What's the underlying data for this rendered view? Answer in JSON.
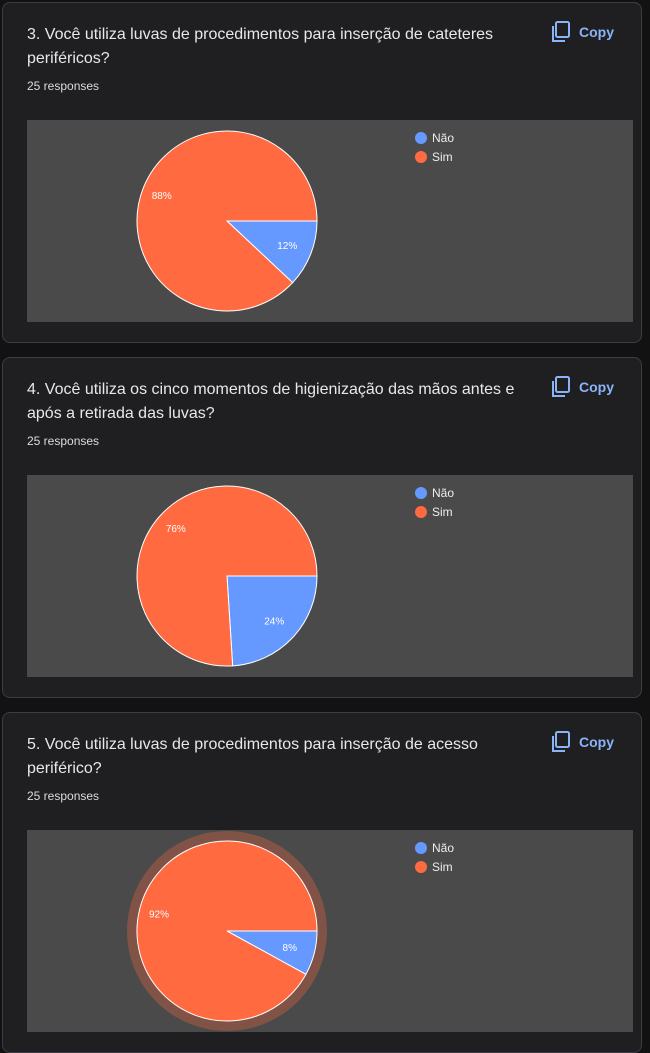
{
  "colors": {
    "nao": "#6699ff",
    "sim": "#ff6a40",
    "copy": "#8ab4f8"
  },
  "cards": [
    {
      "title": "3. Você utiliza luvas de procedimentos para inserção de cateteres periféricos?",
      "responses": "25 responses",
      "copy_label": "Copy",
      "copy_icon": "copy-icon",
      "legend": [
        "Não",
        "Sim"
      ],
      "chart_data": {
        "type": "pie",
        "categories": [
          "Não",
          "Sim"
        ],
        "values": [
          12,
          88
        ],
        "labels": [
          "12%",
          "88%"
        ],
        "legend_position": "top-right"
      }
    },
    {
      "title": "4. Você utiliza os cinco momentos de higienização das mãos antes e após a retirada das luvas?",
      "responses": "25 responses",
      "copy_label": "Copy",
      "copy_icon": "copy-icon",
      "legend": [
        "Não",
        "Sim"
      ],
      "chart_data": {
        "type": "pie",
        "categories": [
          "Não",
          "Sim"
        ],
        "values": [
          24,
          76
        ],
        "labels": [
          "24%",
          "76%"
        ],
        "legend_position": "top-right"
      }
    },
    {
      "title": "5. Você utiliza luvas de procedimentos para inserção de acesso periférico?",
      "responses": "25 responses",
      "copy_label": "Copy",
      "copy_icon": "copy-icon",
      "legend": [
        "Não",
        "Sim"
      ],
      "chart_data": {
        "type": "pie",
        "categories": [
          "Não",
          "Sim"
        ],
        "values": [
          8,
          92
        ],
        "labels": [
          "8%",
          "92%"
        ],
        "legend_position": "top-right"
      }
    }
  ]
}
